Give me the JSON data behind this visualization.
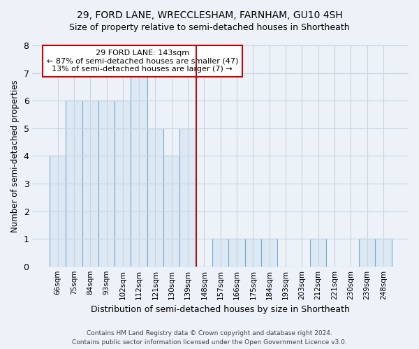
{
  "title1": "29, FORD LANE, WRECCLESHAM, FARNHAM, GU10 4SH",
  "title2": "Size of property relative to semi-detached houses in Shortheath",
  "xlabel": "Distribution of semi-detached houses by size in Shortheath",
  "ylabel": "Number of semi-detached properties",
  "categories": [
    "66sqm",
    "75sqm",
    "84sqm",
    "93sqm",
    "102sqm",
    "112sqm",
    "121sqm",
    "130sqm",
    "139sqm",
    "148sqm",
    "157sqm",
    "166sqm",
    "175sqm",
    "184sqm",
    "193sqm",
    "203sqm",
    "212sqm",
    "221sqm",
    "230sqm",
    "239sqm",
    "248sqm"
  ],
  "values": [
    4,
    6,
    6,
    6,
    6,
    7,
    5,
    4,
    5,
    0,
    1,
    1,
    1,
    1,
    0,
    0,
    1,
    0,
    0,
    1,
    1
  ],
  "bar_color": "#dce8f4",
  "bar_edgecolor": "#7aaacc",
  "subject_line_color": "#aa1111",
  "annotation_text": "29 FORD LANE: 143sqm\n← 87% of semi-detached houses are smaller (47)\n13% of semi-detached houses are larger (7) →",
  "annotation_box_color": "#ffffff",
  "annotation_box_edgecolor": "#cc0000",
  "ylim": [
    0,
    8
  ],
  "yticks": [
    0,
    1,
    2,
    3,
    4,
    5,
    6,
    7,
    8
  ],
  "background_color": "#edf2f8",
  "grid_color": "#c8d4e0",
  "footer": "Contains HM Land Registry data © Crown copyright and database right 2024.\nContains public sector information licensed under the Open Government Licence v3.0."
}
